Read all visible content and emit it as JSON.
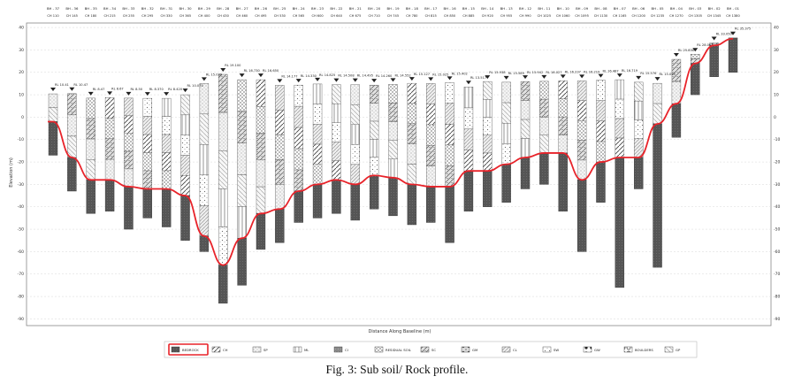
{
  "caption": "Fig. 3: Sub soil/ Rock profile.",
  "xaxis_label": "Distance Along Baseline (m)",
  "yaxis_label": "Elevation (m)",
  "y_ticks": [
    40,
    30,
    20,
    10,
    0,
    -10,
    -20,
    -30,
    -40,
    -50,
    -60,
    -70,
    -80,
    -90
  ],
  "y_range": [
    -93,
    42
  ],
  "boreholes": [
    {
      "id": "BH - 37",
      "ch": "CH 110",
      "rl": "RL 10.41",
      "top": 10.4,
      "tor": -2,
      "bottom": -17
    },
    {
      "id": "BH - 36",
      "ch": "CH 145",
      "rl": "RL 10.47",
      "top": 10.5,
      "tor": -18,
      "bottom": -33
    },
    {
      "id": "BH - 35",
      "ch": "CH 180",
      "rl": "RL 8.47",
      "top": 8.5,
      "tor": -28,
      "bottom": -43
    },
    {
      "id": "BH - 34",
      "ch": "CH 215",
      "rl": "RL 8.67",
      "top": 8.7,
      "tor": -28,
      "bottom": -42
    },
    {
      "id": "BH - 33",
      "ch": "CH 255",
      "rl": "RL 8.50",
      "top": 8.5,
      "tor": -31,
      "bottom": -50
    },
    {
      "id": "BH - 32",
      "ch": "CH 295",
      "rl": "RL 8.370",
      "top": 8.4,
      "tor": -32,
      "bottom": -45
    },
    {
      "id": "BH - 31",
      "ch": "CH 330",
      "rl": "RL 8.420",
      "top": 8.4,
      "tor": -32,
      "bottom": -49
    },
    {
      "id": "BH - 30",
      "ch": "CH 365",
      "rl": "RL 10.070",
      "top": 10,
      "tor": -35,
      "bottom": -55
    },
    {
      "id": "BH - 29",
      "ch": "CH 400",
      "rl": "RL 15.030",
      "top": 15,
      "tor": -53,
      "bottom": -60
    },
    {
      "id": "BH - 28",
      "ch": "CH 430",
      "rl": "RL 19.100",
      "top": 19.1,
      "tor": -66,
      "bottom": -83
    },
    {
      "id": "BH - 27",
      "ch": "CH 460",
      "rl": "RL 16.730",
      "top": 16.7,
      "tor": -54,
      "bottom": -75
    },
    {
      "id": "BH - 26",
      "ch": "CH 495",
      "rl": "RL 16.650",
      "top": 16.7,
      "tor": -43,
      "bottom": -59
    },
    {
      "id": "BH - 25",
      "ch": "CH 530",
      "rl": "RL 14.177",
      "top": 14.2,
      "tor": -41,
      "bottom": -56
    },
    {
      "id": "BH - 24",
      "ch": "CH 565",
      "rl": "RL 14.330",
      "top": 14.3,
      "tor": -33,
      "bottom": -47
    },
    {
      "id": "BH - 23",
      "ch": "CH 600",
      "rl": "RL 14.825",
      "top": 14.8,
      "tor": -30,
      "bottom": -45
    },
    {
      "id": "BH - 22",
      "ch": "CH 640",
      "rl": "RL 14.508",
      "top": 14.5,
      "tor": -28,
      "bottom": -43
    },
    {
      "id": "BH - 21",
      "ch": "CH 675",
      "rl": "RL 14.495",
      "top": 14.5,
      "tor": -30,
      "bottom": -46
    },
    {
      "id": "BH - 20",
      "ch": "CH 710",
      "rl": "RL 14.260",
      "top": 14.3,
      "tor": -26,
      "bottom": -41
    },
    {
      "id": "BH - 19",
      "ch": "CH 745",
      "rl": "RL 14.552",
      "top": 14.6,
      "tor": -27,
      "bottom": -44
    },
    {
      "id": "BH - 18",
      "ch": "CH 780",
      "rl": "RL 15.127",
      "top": 15.1,
      "tor": -30,
      "bottom": -48
    },
    {
      "id": "BH - 17",
      "ch": "CH 815",
      "rl": "RL 15.025",
      "top": 15,
      "tor": -31,
      "bottom": -47
    },
    {
      "id": "BH - 16",
      "ch": "CH 850",
      "rl": "RL 15.402",
      "top": 15.4,
      "tor": -31,
      "bottom": -56
    },
    {
      "id": "BH - 15",
      "ch": "CH 885",
      "rl": "RL 13.517",
      "top": 13.5,
      "tor": -24,
      "bottom": -42
    },
    {
      "id": "BH - 14",
      "ch": "CH 920",
      "rl": "RL 15.938",
      "top": 15.9,
      "tor": -24,
      "bottom": -40
    },
    {
      "id": "BH - 13",
      "ch": "CH 955",
      "rl": "RL 15.589",
      "top": 15.6,
      "tor": -21,
      "bottom": -38
    },
    {
      "id": "BH - 12",
      "ch": "CH 990",
      "rl": "RL 15.942",
      "top": 15.9,
      "tor": -18,
      "bottom": -32
    },
    {
      "id": "BH - 11",
      "ch": "CH 1025",
      "rl": "RL 16.027",
      "top": 16,
      "tor": -16,
      "bottom": -30
    },
    {
      "id": "BH - 10",
      "ch": "CH 1060",
      "rl": "RL 16.237",
      "top": 16.2,
      "tor": -16,
      "bottom": -42
    },
    {
      "id": "BH - 09",
      "ch": "CH 1095",
      "rl": "RL 16.219",
      "top": 16.2,
      "tor": -28,
      "bottom": -60
    },
    {
      "id": "BH - 08",
      "ch": "CH 1130",
      "rl": "RL 16.487",
      "top": 16.5,
      "tor": -20,
      "bottom": -38
    },
    {
      "id": "BH - 07",
      "ch": "CH 1165",
      "rl": "RL 16.719",
      "top": 16.7,
      "tor": -18,
      "bottom": -76
    },
    {
      "id": "BH - 06",
      "ch": "CH 1200",
      "rl": "RL 15.576",
      "top": 15.6,
      "tor": -18,
      "bottom": -32
    },
    {
      "id": "BH - 05",
      "ch": "CH 1235",
      "rl": "RL 15.093",
      "top": 15.1,
      "tor": -3,
      "bottom": -67
    },
    {
      "id": "BH - 04",
      "ch": "CH 1270",
      "rl": "RL 25.830",
      "top": 25.8,
      "tor": 6,
      "bottom": -9
    },
    {
      "id": "BH - 03",
      "ch": "CH 1305",
      "rl": "RL 28.065",
      "top": 28.1,
      "tor": 24,
      "bottom": 10
    },
    {
      "id": "BH - 02",
      "ch": "CH 1345",
      "rl": "RL 33.050",
      "top": 33.1,
      "tor": 32,
      "bottom": 18
    },
    {
      "id": "BH - 01",
      "ch": "CH 1380",
      "rl": "RL 35.375",
      "top": 35.4,
      "tor": 35,
      "bottom": 20
    }
  ],
  "legend": [
    {
      "label": "BEDROCK",
      "pattern": "bedrock",
      "highlight": true
    },
    {
      "label": "CH",
      "pattern": "ch"
    },
    {
      "label": "SP",
      "pattern": "sp"
    },
    {
      "label": "ML",
      "pattern": "ml"
    },
    {
      "label": "CI",
      "pattern": "ci"
    },
    {
      "label": "RESIDUAL SOIL",
      "pattern": "rs"
    },
    {
      "label": "SC",
      "pattern": "sc"
    },
    {
      "label": "GM",
      "pattern": "gm"
    },
    {
      "label": "CL",
      "pattern": "cl"
    },
    {
      "label": "SW",
      "pattern": "sw"
    },
    {
      "label": "GW",
      "pattern": "gw"
    },
    {
      "label": "BOULDERS",
      "pattern": "boulders"
    },
    {
      "label": "GP",
      "pattern": "gp"
    }
  ],
  "colors": {
    "rockline": "#e8232a",
    "bedrock": "#555555",
    "border": "#777777"
  }
}
